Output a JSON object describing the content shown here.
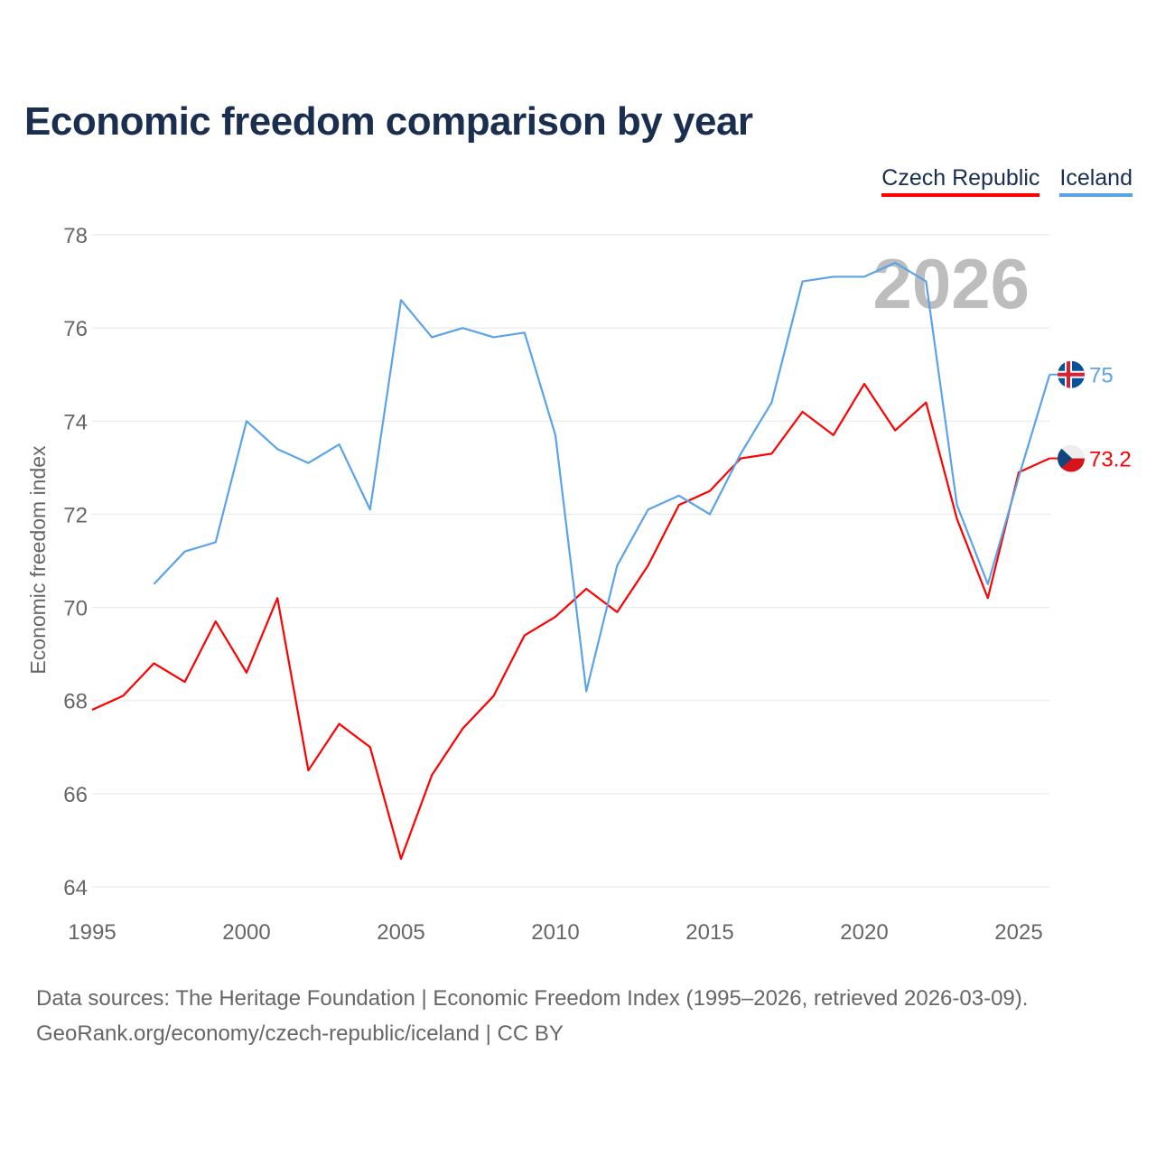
{
  "chart_data": {
    "type": "line",
    "title": "Economic freedom comparison by year",
    "ylabel": "Economic freedom index",
    "xlabel": "",
    "xlim": [
      1995,
      2026
    ],
    "ylim": [
      64,
      78
    ],
    "yticks": [
      64,
      66,
      68,
      70,
      72,
      74,
      76,
      78
    ],
    "xticks": [
      1995,
      2000,
      2005,
      2010,
      2015,
      2020,
      2025
    ],
    "grid": true,
    "legend_position": "top-right",
    "year_watermark": "2026",
    "series": [
      {
        "name": "Czech Republic",
        "color": "#ff0000",
        "end_label": "73.2",
        "flag": "czech-flag",
        "x": [
          1995,
          1996,
          1997,
          1998,
          1999,
          2000,
          2001,
          2002,
          2003,
          2004,
          2005,
          2006,
          2007,
          2008,
          2009,
          2010,
          2011,
          2012,
          2013,
          2014,
          2015,
          2016,
          2017,
          2018,
          2019,
          2020,
          2021,
          2022,
          2023,
          2024,
          2025,
          2026
        ],
        "values": [
          67.8,
          68.1,
          68.8,
          68.4,
          69.7,
          68.6,
          70.2,
          66.5,
          67.5,
          67.0,
          64.6,
          66.4,
          67.4,
          68.1,
          69.4,
          69.8,
          70.4,
          69.9,
          70.9,
          72.2,
          72.5,
          73.2,
          73.3,
          74.2,
          73.7,
          74.8,
          73.8,
          74.4,
          71.9,
          70.2,
          72.9,
          73.2
        ]
      },
      {
        "name": "Iceland",
        "color": "#5ba3e8",
        "end_label": "75",
        "flag": "iceland-flag",
        "x": [
          1997,
          1998,
          1999,
          2000,
          2001,
          2002,
          2003,
          2004,
          2005,
          2006,
          2007,
          2008,
          2009,
          2010,
          2011,
          2012,
          2013,
          2014,
          2015,
          2016,
          2017,
          2018,
          2019,
          2020,
          2021,
          2022,
          2023,
          2024,
          2025,
          2026
        ],
        "values": [
          70.5,
          71.2,
          71.4,
          74.0,
          73.4,
          73.1,
          73.5,
          72.1,
          76.6,
          75.8,
          76.0,
          75.8,
          75.9,
          73.7,
          68.2,
          70.9,
          72.1,
          72.4,
          72.0,
          73.3,
          74.4,
          77.0,
          77.1,
          77.1,
          77.4,
          77.0,
          72.2,
          70.5,
          72.8,
          75.0
        ]
      }
    ]
  },
  "footer": {
    "line1": "Data sources: The Heritage Foundation | Economic Freedom Index (1995–2026, retrieved 2026-03-09).",
    "line2": "GeoRank.org/economy/czech-republic/iceland | CC BY"
  }
}
